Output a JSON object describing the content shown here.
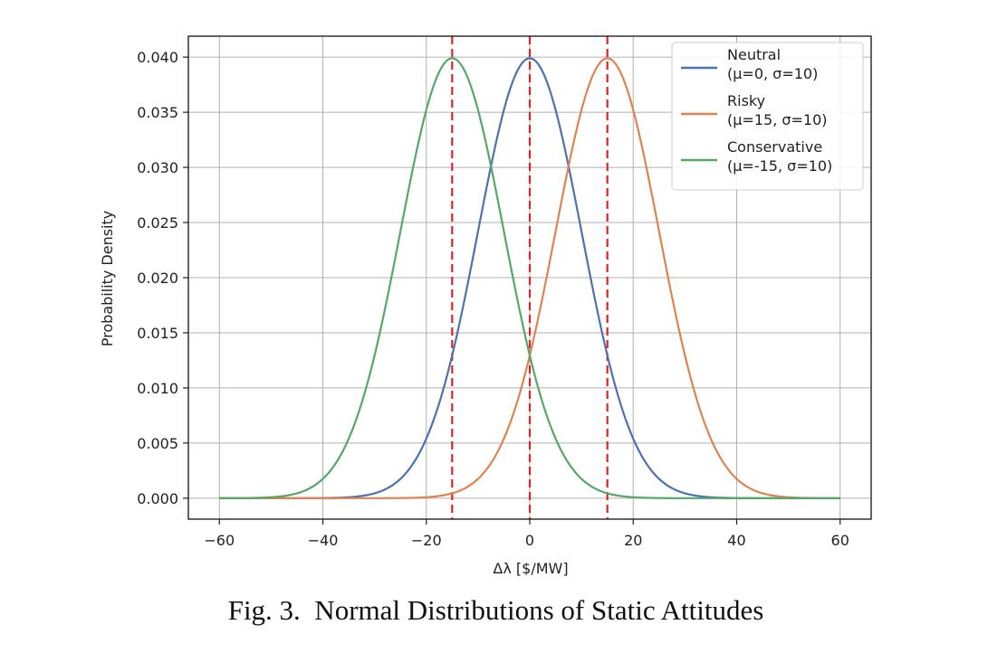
{
  "caption": "Fig. 3.  Normal Distributions of Static Attitudes",
  "chart_data": {
    "type": "line",
    "title": "",
    "xlabel": "Δλ [$/MW]",
    "ylabel": "Probability Density",
    "xlim": [
      -66,
      66
    ],
    "ylim": [
      -0.0019,
      0.0419
    ],
    "x_ticks": [
      -60,
      -40,
      -20,
      0,
      20,
      40,
      60
    ],
    "x_tick_labels": [
      "−60",
      "−40",
      "−20",
      "0",
      "20",
      "40",
      "60"
    ],
    "y_ticks": [
      0,
      0.005,
      0.01,
      0.015,
      0.02,
      0.025,
      0.03,
      0.035,
      0.04
    ],
    "y_tick_labels": [
      "0.000",
      "0.005",
      "0.010",
      "0.015",
      "0.020",
      "0.025",
      "0.030",
      "0.035",
      "0.040"
    ],
    "grid": true,
    "legend_position": "top-right",
    "x_range": [
      -60,
      60
    ],
    "series": [
      {
        "name": "Neutral\n(μ=0, σ=10)",
        "distribution": "normal",
        "mu": 0,
        "sigma": 10,
        "color": "#4c72b0"
      },
      {
        "name": "Risky\n(μ=15, σ=10)",
        "distribution": "normal",
        "mu": 15,
        "sigma": 10,
        "color": "#dd8452"
      },
      {
        "name": "Conservative\n(μ=-15, σ=10)",
        "distribution": "normal",
        "mu": -15,
        "sigma": 10,
        "color": "#55a868"
      }
    ],
    "vlines": [
      {
        "x": -15,
        "style": "dashed",
        "color": "#d62728"
      },
      {
        "x": 0,
        "style": "dashed",
        "color": "#d62728"
      },
      {
        "x": 15,
        "style": "dashed",
        "color": "#d62728"
      }
    ]
  }
}
